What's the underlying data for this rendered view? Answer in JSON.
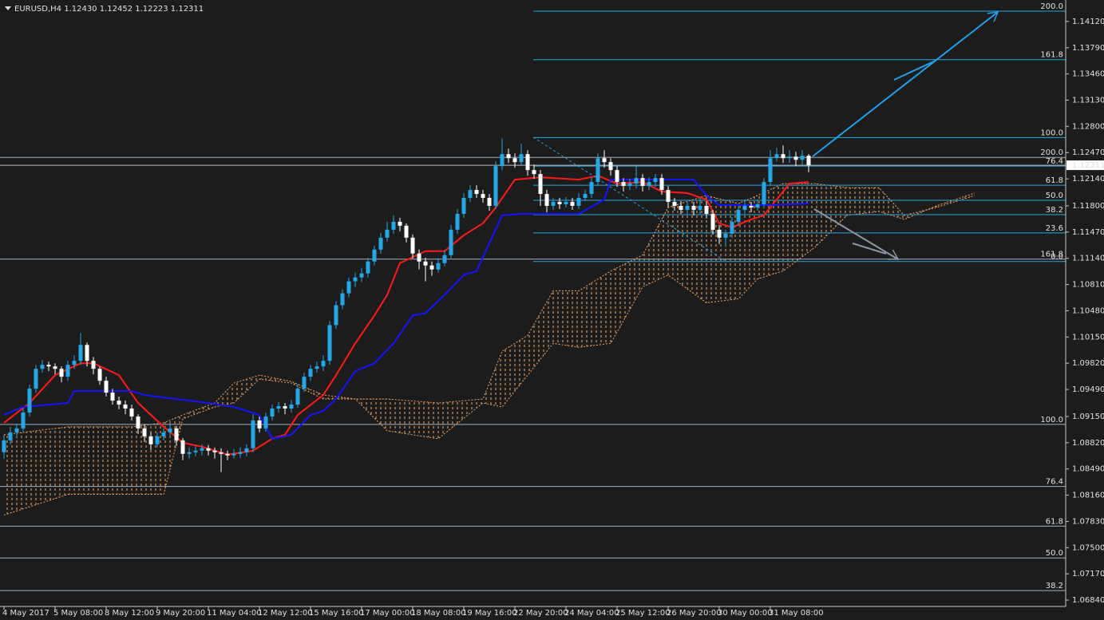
{
  "chart_data": {
    "type": "candlestick",
    "title": "EURUSD,H4 1.12430 1.12452 1.12223 1.12311",
    "up_color": "#26a7e6",
    "down_color": "#ffffff",
    "xlim": [
      -0.625,
      166.25
    ],
    "xticks": [
      {
        "value": 0,
        "label": "4 May 2017"
      },
      {
        "value": 8,
        "label": "5 May 08:00"
      },
      {
        "value": 16,
        "label": "8 May 12:00"
      },
      {
        "value": 24,
        "label": "9 May 20:00"
      },
      {
        "value": 32,
        "label": "11 May 04:00"
      },
      {
        "value": 40,
        "label": "12 May 12:00"
      },
      {
        "value": 48,
        "label": "15 May 16:00"
      },
      {
        "value": 56,
        "label": "17 May 00:00"
      },
      {
        "value": 64,
        "label": "18 May 08:00"
      },
      {
        "value": 72,
        "label": "19 May 16:00"
      },
      {
        "value": 80,
        "label": "22 May 20:00"
      },
      {
        "value": 88,
        "label": "24 May 04:00"
      },
      {
        "value": 96,
        "label": "25 May 12:00"
      },
      {
        "value": 104,
        "label": "26 May 20:00"
      },
      {
        "value": 112,
        "label": "30 May 00:00"
      },
      {
        "value": 120,
        "label": "31 May 08:00"
      }
    ],
    "ylim": [
      1.0676,
      1.1439
    ],
    "yticks": [
      {
        "value": 1.1412,
        "label": "1.14120"
      },
      {
        "value": 1.1379,
        "label": "1.13790"
      },
      {
        "value": 1.1346,
        "label": "1.13460"
      },
      {
        "value": 1.1313,
        "label": "1.13130"
      },
      {
        "value": 1.128,
        "label": "1.12800"
      },
      {
        "value": 1.1247,
        "label": "1.12470"
      },
      {
        "value": 1.1214,
        "label": "1.12140"
      },
      {
        "value": 1.118,
        "label": "1.11800"
      },
      {
        "value": 1.1147,
        "label": "1.11470"
      },
      {
        "value": 1.1114,
        "label": "1.11140"
      },
      {
        "value": 1.1081,
        "label": "1.10810"
      },
      {
        "value": 1.1048,
        "label": "1.10480"
      },
      {
        "value": 1.1015,
        "label": "1.10150"
      },
      {
        "value": 1.0982,
        "label": "1.09820"
      },
      {
        "value": 1.0949,
        "label": "1.09490"
      },
      {
        "value": 1.0915,
        "label": "1.09150"
      },
      {
        "value": 1.0882,
        "label": "1.08820"
      },
      {
        "value": 1.0849,
        "label": "1.08490"
      },
      {
        "value": 1.0816,
        "label": "1.08160"
      },
      {
        "value": 1.0783,
        "label": "1.07830"
      },
      {
        "value": 1.075,
        "label": "1.07500"
      },
      {
        "value": 1.0717,
        "label": "1.07170"
      },
      {
        "value": 1.0684,
        "label": "1.06840"
      }
    ],
    "open": [
      1.087,
      1.0885,
      1.0895,
      1.09,
      1.092,
      1.095,
      1.0975,
      1.098,
      1.0978,
      1.0975,
      1.0965,
      1.098,
      1.0985,
      1.1005,
      1.0985,
      1.0975,
      1.096,
      1.0945,
      1.0935,
      1.093,
      1.0925,
      1.0915,
      1.09,
      1.089,
      1.088,
      1.089,
      1.0895,
      1.09,
      1.0885,
      1.0868,
      1.087,
      1.0872,
      1.0875,
      1.0872,
      1.087,
      1.0868,
      1.0866,
      1.0868,
      1.087,
      1.0875,
      1.091,
      1.09,
      1.0915,
      1.0925,
      1.0928,
      1.0925,
      1.093,
      1.095,
      1.0965,
      1.0975,
      1.0978,
      1.0985,
      1.103,
      1.1055,
      1.107,
      1.1085,
      1.109,
      1.1095,
      1.111,
      1.1125,
      1.114,
      1.115,
      1.116,
      1.1155,
      1.114,
      1.112,
      1.111,
      1.1105,
      1.11,
      1.1108,
      1.1118,
      1.115,
      1.117,
      1.119,
      1.12,
      1.1195,
      1.119,
      1.118,
      1.123,
      1.1245,
      1.124,
      1.1235,
      1.1245,
      1.1225,
      1.122,
      1.1195,
      1.118,
      1.1185,
      1.1182,
      1.1185,
      1.118,
      1.119,
      1.1195,
      1.121,
      1.124,
      1.1235,
      1.1225,
      1.121,
      1.1205,
      1.1208,
      1.1215,
      1.1205,
      1.121,
      1.1215,
      1.12,
      1.1185,
      1.118,
      1.1175,
      1.118,
      1.1175,
      1.118,
      1.117,
      1.115,
      1.114,
      1.1145,
      1.116,
      1.1175,
      1.118,
      1.1178,
      1.1182,
      1.121,
      1.124,
      1.1245,
      1.124,
      1.1242,
      1.1238,
      1.1243
    ],
    "high": [
      1.0892,
      1.0902,
      1.0906,
      1.0925,
      1.0955,
      1.098,
      1.0986,
      1.0984,
      1.0982,
      1.0978,
      1.0985,
      1.0992,
      1.102,
      1.1008,
      1.099,
      1.0978,
      1.0965,
      1.095,
      1.094,
      1.0935,
      1.093,
      1.0918,
      1.0905,
      1.0895,
      1.0895,
      1.09,
      1.0906,
      1.0903,
      1.0888,
      1.0876,
      1.0878,
      1.088,
      1.0879,
      1.0876,
      1.0875,
      1.0872,
      1.0874,
      1.0876,
      1.088,
      1.0918,
      1.0915,
      1.092,
      1.093,
      1.0933,
      1.0932,
      1.0936,
      1.0956,
      1.097,
      1.098,
      1.0984,
      1.0992,
      1.1035,
      1.106,
      1.1075,
      1.109,
      1.1096,
      1.1102,
      1.1115,
      1.113,
      1.1146,
      1.116,
      1.1168,
      1.1165,
      1.1158,
      1.1144,
      1.1125,
      1.1115,
      1.111,
      1.1114,
      1.1124,
      1.1156,
      1.1176,
      1.1196,
      1.1206,
      1.1206,
      1.12,
      1.1195,
      1.1236,
      1.1265,
      1.1252,
      1.1246,
      1.1258,
      1.125,
      1.1232,
      1.1225,
      1.12,
      1.119,
      1.119,
      1.1191,
      1.119,
      1.1196,
      1.12,
      1.1216,
      1.1246,
      1.125,
      1.124,
      1.123,
      1.1215,
      1.1214,
      1.123,
      1.122,
      1.1216,
      1.122,
      1.122,
      1.1205,
      1.119,
      1.1186,
      1.1186,
      1.1185,
      1.119,
      1.1186,
      1.1175,
      1.1156,
      1.115,
      1.1166,
      1.118,
      1.1186,
      1.1185,
      1.1188,
      1.1215,
      1.125,
      1.1253,
      1.1256,
      1.125,
      1.1248,
      1.125,
      1.12452
    ],
    "low": [
      1.0862,
      1.088,
      1.089,
      1.0896,
      1.0915,
      1.0945,
      1.097,
      1.0972,
      1.0968,
      1.0958,
      1.096,
      1.0975,
      1.098,
      1.0978,
      1.0968,
      1.0955,
      1.094,
      1.093,
      1.0924,
      1.0918,
      1.091,
      1.0893,
      1.0883,
      1.0873,
      1.0876,
      1.0885,
      1.089,
      1.0878,
      1.086,
      1.0862,
      1.0865,
      1.0866,
      1.0866,
      1.0862,
      1.0845,
      1.086,
      1.0862,
      1.0863,
      1.0865,
      1.087,
      1.0895,
      1.0896,
      1.091,
      1.092,
      1.0918,
      1.092,
      1.0926,
      1.0946,
      1.096,
      1.097,
      1.0972,
      1.098,
      1.1025,
      1.105,
      1.1065,
      1.1078,
      1.1084,
      1.109,
      1.1105,
      1.112,
      1.1135,
      1.1145,
      1.1148,
      1.1134,
      1.1114,
      1.11,
      1.1085,
      1.1092,
      1.1096,
      1.1104,
      1.1114,
      1.1145,
      1.1165,
      1.1185,
      1.119,
      1.1184,
      1.1174,
      1.1176,
      1.1225,
      1.1234,
      1.1228,
      1.123,
      1.1218,
      1.1214,
      1.118,
      1.1172,
      1.1175,
      1.1176,
      1.1178,
      1.1175,
      1.1176,
      1.1186,
      1.119,
      1.1205,
      1.1228,
      1.1218,
      1.1204,
      1.1198,
      1.12,
      1.1202,
      1.1198,
      1.12,
      1.1204,
      1.1194,
      1.1178,
      1.1174,
      1.117,
      1.117,
      1.1168,
      1.117,
      1.1164,
      1.1144,
      1.1132,
      1.113,
      1.114,
      1.1155,
      1.117,
      1.1172,
      1.1174,
      1.1178,
      1.1205,
      1.1236,
      1.1234,
      1.1234,
      1.123,
      1.1232,
      1.12223
    ],
    "close": [
      1.0885,
      1.0895,
      1.09,
      1.092,
      1.095,
      1.0975,
      1.098,
      1.0978,
      1.0975,
      1.0965,
      1.098,
      1.0985,
      1.1005,
      1.0985,
      1.0975,
      1.096,
      1.0945,
      1.0935,
      1.093,
      1.0925,
      1.0915,
      1.09,
      1.089,
      1.088,
      1.089,
      1.0895,
      1.09,
      1.0885,
      1.0868,
      1.087,
      1.0872,
      1.0875,
      1.0872,
      1.087,
      1.0868,
      1.0866,
      1.0868,
      1.087,
      1.0875,
      1.091,
      1.09,
      1.0915,
      1.0925,
      1.0928,
      1.0925,
      1.093,
      1.095,
      1.0965,
      1.0975,
      1.0978,
      1.0985,
      1.103,
      1.1055,
      1.107,
      1.1085,
      1.109,
      1.1095,
      1.111,
      1.1125,
      1.114,
      1.115,
      1.116,
      1.1155,
      1.114,
      1.112,
      1.111,
      1.1105,
      1.11,
      1.1108,
      1.1118,
      1.115,
      1.117,
      1.119,
      1.12,
      1.1195,
      1.119,
      1.118,
      1.123,
      1.1245,
      1.124,
      1.1235,
      1.1245,
      1.1225,
      1.122,
      1.1195,
      1.118,
      1.1185,
      1.1182,
      1.1185,
      1.118,
      1.119,
      1.1195,
      1.121,
      1.124,
      1.1235,
      1.1225,
      1.121,
      1.1205,
      1.1208,
      1.1215,
      1.1205,
      1.121,
      1.1215,
      1.12,
      1.1185,
      1.118,
      1.1175,
      1.118,
      1.1175,
      1.118,
      1.117,
      1.115,
      1.114,
      1.1145,
      1.116,
      1.1175,
      1.118,
      1.1178,
      1.1182,
      1.121,
      1.124,
      1.1245,
      1.124,
      1.1242,
      1.1238,
      1.1243,
      1.12311
    ],
    "lines": [
      {
        "color": "#ff1a1a",
        "x": [
          0,
          4,
          8,
          12,
          14,
          18,
          21,
          25,
          28,
          31,
          35,
          39,
          42,
          44,
          46,
          50,
          52,
          55,
          58,
          60,
          62,
          66,
          69,
          72,
          75,
          77,
          80,
          84,
          90,
          93,
          96,
          100,
          103,
          107,
          110,
          112,
          114,
          117,
          119,
          121,
          123,
          126
        ],
        "values": [
          1.0907,
          1.0932,
          1.0967,
          1.0982,
          1.0982,
          1.0967,
          1.0932,
          1.0902,
          1.0882,
          1.0877,
          1.0867,
          1.0872,
          1.0887,
          1.0892,
          1.0917,
          1.0942,
          1.0967,
          1.1007,
          1.1042,
          1.1068,
          1.1108,
          1.1123,
          1.1123,
          1.1143,
          1.1158,
          1.1178,
          1.1213,
          1.1216,
          1.1213,
          1.1218,
          1.1208,
          1.121,
          1.1198,
          1.1196,
          1.1188,
          1.1158,
          1.1153,
          1.1163,
          1.1168,
          1.1188,
          1.1208,
          1.121
        ]
      },
      {
        "color": "#1414ff",
        "x": [
          0,
          3,
          10,
          11,
          20,
          22,
          32,
          36,
          40,
          42,
          45,
          48,
          50,
          52,
          55,
          58,
          61,
          64,
          66,
          69,
          72,
          74,
          76,
          78,
          81,
          90,
          94,
          95,
          108,
          110,
          112,
          120,
          126
        ],
        "values": [
          1.0917,
          1.0927,
          1.0932,
          1.0947,
          1.0947,
          1.0942,
          1.0932,
          1.0927,
          1.0917,
          1.0887,
          1.0892,
          1.0917,
          1.0922,
          1.0937,
          1.0972,
          1.0982,
          1.1007,
          1.1042,
          1.1045,
          1.1068,
          1.1093,
          1.1098,
          1.1133,
          1.1168,
          1.117,
          1.117,
          1.1188,
          1.1213,
          1.1213,
          1.1193,
          1.1181,
          1.1181,
          1.1183
        ]
      }
    ],
    "cloud": {
      "color": "#f4a460",
      "x": [
        0,
        10,
        20,
        25,
        28,
        33,
        36,
        40,
        45,
        50,
        55,
        60,
        68,
        75,
        78,
        82,
        86,
        90,
        95,
        100,
        104,
        110,
        115,
        118,
        122,
        127,
        132,
        137,
        141,
        146,
        152
      ],
      "span_a": [
        1.0892,
        1.0902,
        1.0902,
        1.0907,
        1.0917,
        1.0932,
        1.0957,
        1.0967,
        1.0959,
        1.0942,
        1.0937,
        1.0937,
        1.0932,
        1.0937,
        1.0997,
        1.1017,
        1.1073,
        1.1073,
        1.1098,
        1.1118,
        1.1178,
        1.1193,
        1.1183,
        1.1193,
        1.1208,
        1.1208,
        1.1203,
        1.1203,
        1.1168,
        1.1178,
        1.1193
      ],
      "span_b": [
        1.0791,
        1.0817,
        1.0817,
        1.0817,
        1.0912,
        1.0927,
        1.0932,
        1.0962,
        1.0957,
        1.0937,
        1.0937,
        1.0897,
        1.0887,
        1.0932,
        1.0927,
        1.0967,
        1.1007,
        1.1002,
        1.1007,
        1.1078,
        1.1093,
        1.1058,
        1.1063,
        1.1088,
        1.1098,
        1.1128,
        1.1168,
        1.1173,
        1.1163,
        1.118,
        1.1196
      ]
    },
    "fib": [
      {
        "color": "#9fb0bf",
        "levels": [
          {
            "label": "200.0",
            "value": 1.1241
          },
          {
            "label": "161.8",
            "value": 1.1113
          },
          {
            "label": "100.0",
            "value": 1.0905
          },
          {
            "label": "76.4",
            "value": 1.0827
          },
          {
            "label": "61.8",
            "value": 1.0777
          },
          {
            "label": "50.0",
            "value": 1.0737
          },
          {
            "label": "38.2",
            "value": 1.0696
          }
        ]
      },
      {
        "color": "#2aa8e0",
        "levels": [
          {
            "label": "200.0",
            "value": 1.1425
          },
          {
            "label": "161.8",
            "value": 1.1364
          },
          {
            "label": "100.0",
            "value": 1.1266
          },
          {
            "label": "76.4",
            "value": 1.123
          },
          {
            "label": "61.8",
            "value": 1.1206
          },
          {
            "label": "50.0",
            "value": 1.1187
          },
          {
            "label": "38.2",
            "value": 1.1169
          },
          {
            "label": "23.6",
            "value": 1.1146
          },
          {
            "label": "0.0",
            "value": 1.111
          }
        ]
      }
    ],
    "current_price": {
      "value": 1.12311,
      "label": "1.12311"
    }
  }
}
